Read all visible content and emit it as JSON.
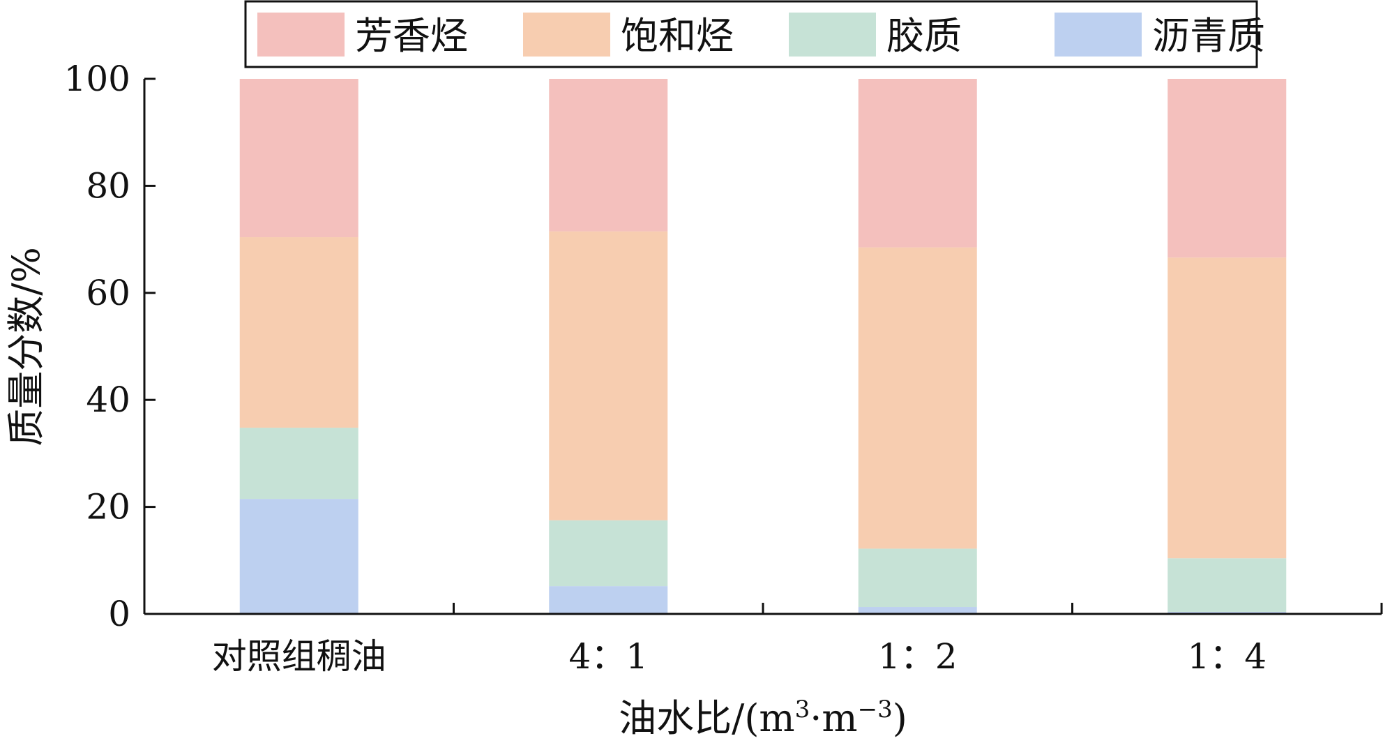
{
  "chart_data": {
    "type": "bar",
    "stacked": true,
    "categories": [
      "对照组稠油",
      "4：1",
      "1：2",
      "1：4"
    ],
    "series": [
      {
        "name": "沥青质",
        "color": "#bdd0f0",
        "values": [
          21.5,
          5.2,
          1.3,
          0.4
        ]
      },
      {
        "name": "胶质",
        "color": "#c6e2d6",
        "values": [
          13.3,
          12.3,
          10.9,
          10.0
        ]
      },
      {
        "name": "饱和烃",
        "color": "#f7cdb0",
        "values": [
          35.6,
          54.0,
          56.3,
          56.2
        ]
      },
      {
        "name": "芳香烃",
        "color": "#f4c0bd",
        "values": [
          29.6,
          28.5,
          31.5,
          33.4
        ]
      }
    ],
    "legend_order": [
      "芳香烃",
      "饱和烃",
      "胶质",
      "沥青质"
    ],
    "legend_position": "top",
    "xlabel_text": "油水比/(m",
    "xlabel_sup1": "3",
    "xlabel_mid": "·m",
    "xlabel_sup2": "−3",
    "xlabel_close": ")",
    "ylabel": "质量分数/%",
    "ylim": [
      0,
      100
    ],
    "yticks": [
      "0",
      "20",
      "40",
      "60",
      "80",
      "100"
    ],
    "grid": false
  }
}
